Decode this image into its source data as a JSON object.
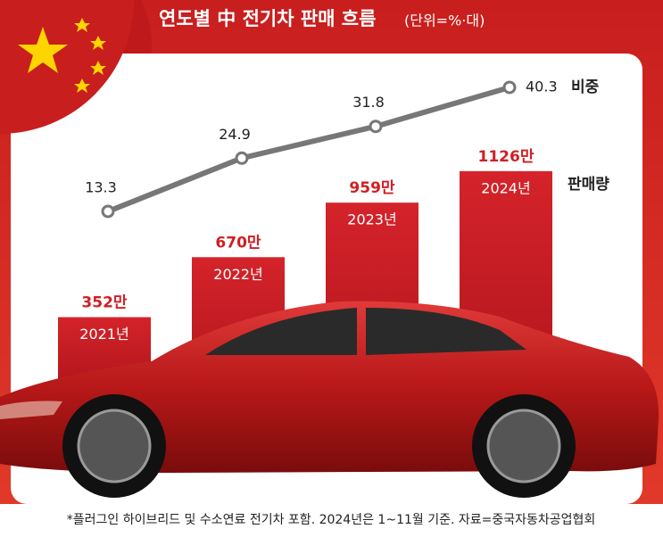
{
  "chart_data": {
    "type": "bar-line",
    "title": "연도별 中 전기차 판매 흐름",
    "subtitle": "(단위=%·대)",
    "categories": [
      "2021년",
      "2022년",
      "2023년",
      "2024년"
    ],
    "series": [
      {
        "name": "판매량",
        "type": "bar",
        "color": "#d01f24",
        "values": [
          352,
          670,
          959,
          1126
        ],
        "value_labels": [
          "352만",
          "670만",
          "959만",
          "1126만"
        ]
      },
      {
        "name": "비중",
        "type": "line",
        "color": "#777777",
        "values": [
          13.3,
          24.9,
          31.8,
          40.3
        ]
      }
    ],
    "footnote": "*플러그인 하이브리드 및 수소연료 전기차 포함. 2024년은 1~11월 기준. 자료=중국자동차공업협회"
  }
}
